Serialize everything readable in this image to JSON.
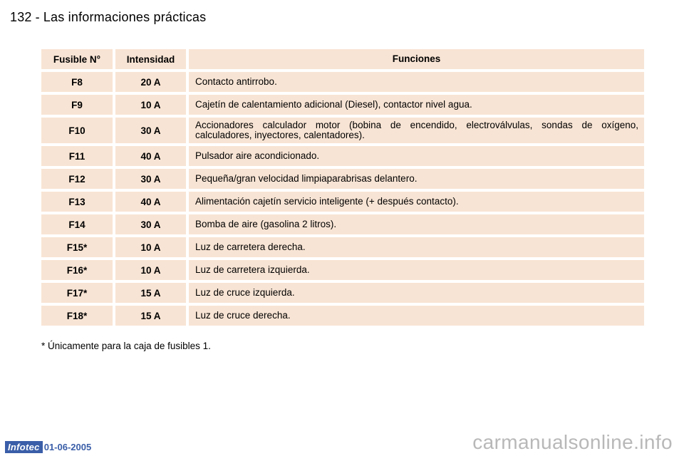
{
  "header": {
    "page_number": "132",
    "separator": "-",
    "title": "Las informaciones prácticas"
  },
  "table": {
    "columns": [
      "Fusible N°",
      "Intensidad",
      "Funciones"
    ],
    "rows": [
      {
        "fuse": "F8",
        "amps": "20 A",
        "function": "Contacto antirrobo."
      },
      {
        "fuse": "F9",
        "amps": "10 A",
        "function": "Cajetín de calentamiento adicional (Diesel), contactor nivel agua."
      },
      {
        "fuse": "F10",
        "amps": "30 A",
        "function": "Accionadores calculador motor (bobina de encendido, electroválvulas, sondas de oxígeno, calculadores, inyectores, calentadores)."
      },
      {
        "fuse": "F11",
        "amps": "40 A",
        "function": "Pulsador aire acondicionado."
      },
      {
        "fuse": "F12",
        "amps": "30 A",
        "function": "Pequeña/gran velocidad limpiaparabrisas delantero."
      },
      {
        "fuse": "F13",
        "amps": "40 A",
        "function": "Alimentación cajetín servicio inteligente (+ después contacto)."
      },
      {
        "fuse": "F14",
        "amps": "30 A",
        "function": "Bomba de aire (gasolina 2 litros)."
      },
      {
        "fuse": "F15*",
        "amps": "10 A",
        "function": "Luz de carretera derecha."
      },
      {
        "fuse": "F16*",
        "amps": "10 A",
        "function": "Luz de carretera izquierda."
      },
      {
        "fuse": "F17*",
        "amps": "15 A",
        "function": "Luz de cruce izquierda."
      },
      {
        "fuse": "F18*",
        "amps": "15 A",
        "function": "Luz de cruce derecha."
      }
    ]
  },
  "footnote": "* Únicamente para la caja de fusibles 1.",
  "edition": {
    "logo": "Infotec",
    "date": "01-06-2005"
  },
  "watermark": "carmanualsonline.info",
  "colors": {
    "cell_background": "#f8e4d4",
    "edition_blue": "#3a5ea8",
    "watermark_gray": "#b8b8b8"
  }
}
